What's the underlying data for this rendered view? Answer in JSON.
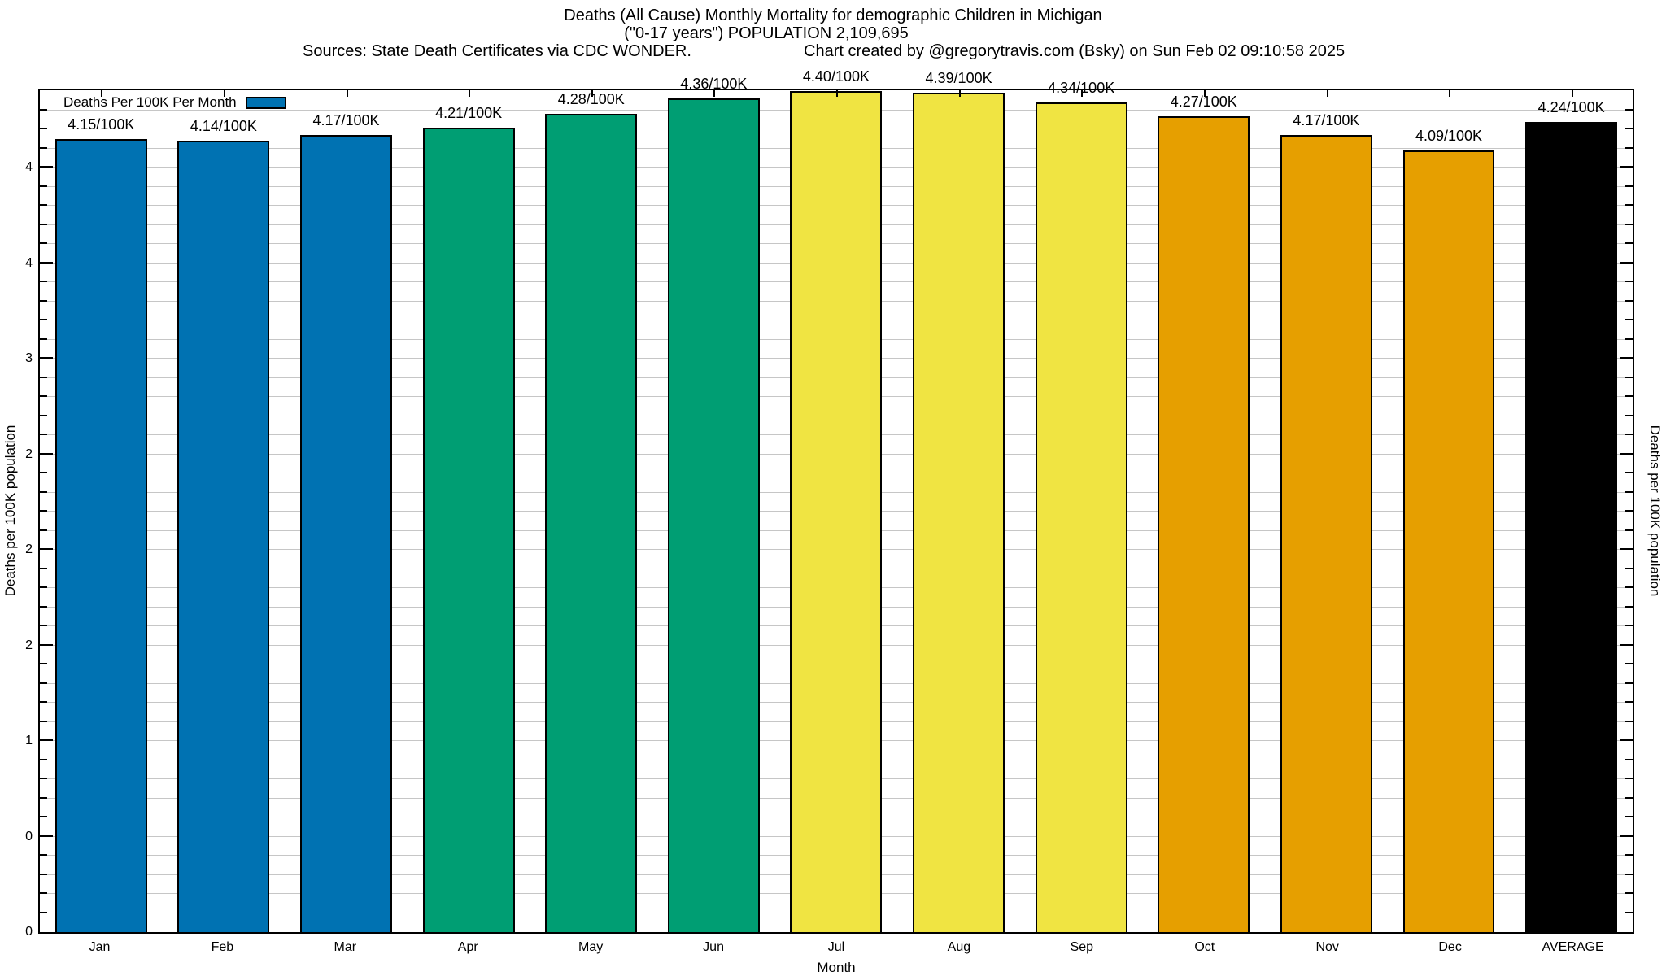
{
  "title": {
    "line1": "Deaths (All Cause) Monthly Mortality for demographic Children in Michigan",
    "line2": "(\"0-17 years\") POPULATION 2,109,695",
    "sources": "Sources: State Death Certificates via CDC WONDER.",
    "credit": "Chart created by @gregorytravis.com (Bsky) on Sun Feb 02 09:10:58 2025"
  },
  "legend": {
    "label": "Deaths Per 100K Per Month",
    "swatch_color": "#0072B2"
  },
  "axes": {
    "x_label": "Month",
    "y_left_label": "Deaths per 100K population",
    "y_right_label": "Deaths per 100K population",
    "y_ticks": [
      {
        "value": 4.0,
        "label": "4"
      },
      {
        "value": 3.5,
        "label": "4"
      },
      {
        "value": 3.0,
        "label": "3"
      },
      {
        "value": 2.5,
        "label": "2"
      },
      {
        "value": 2.0,
        "label": "2"
      },
      {
        "value": 1.5,
        "label": "2"
      },
      {
        "value": 1.0,
        "label": "1"
      },
      {
        "value": 0.5,
        "label": "0"
      },
      {
        "value": 0.0,
        "label": "0"
      }
    ]
  },
  "chart_data": {
    "type": "bar",
    "title": "Deaths (All Cause) Monthly Mortality for demographic Children in Michigan (\"0-17 years\") POPULATION 2,109,695",
    "xlabel": "Month",
    "ylabel": "Deaths per 100K population",
    "categories": [
      "Jan",
      "Feb",
      "Mar",
      "Apr",
      "May",
      "Jun",
      "Jul",
      "Aug",
      "Sep",
      "Oct",
      "Nov",
      "Dec",
      "AVERAGE"
    ],
    "values": [
      4.15,
      4.14,
      4.17,
      4.21,
      4.28,
      4.36,
      4.4,
      4.39,
      4.34,
      4.27,
      4.17,
      4.09,
      4.24
    ],
    "bar_labels": [
      "4.15/100K",
      "4.14/100K",
      "4.17/100K",
      "4.21/100K",
      "4.28/100K",
      "4.36/100K",
      "4.40/100K",
      "4.39/100K",
      "4.34/100K",
      "4.27/100K",
      "4.17/100K",
      "4.09/100K",
      "4.24/100K"
    ],
    "bar_colors": [
      "#0072B2",
      "#0072B2",
      "#0072B2",
      "#009E73",
      "#009E73",
      "#009E73",
      "#F0E442",
      "#F0E442",
      "#F0E442",
      "#E69F00",
      "#E69F00",
      "#E69F00",
      "#000000"
    ],
    "ylim": [
      0,
      4.42
    ],
    "y_major_tick_step": 0.5,
    "y_minor_tick_step": 0.1,
    "grid": "horizontal minor gridlines every 0.1",
    "legend_position": "top-left-inside",
    "grid_color": "#c6c6c6"
  }
}
